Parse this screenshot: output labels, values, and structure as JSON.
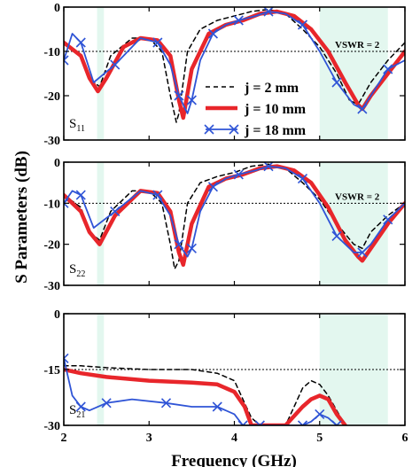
{
  "chart_data": {
    "type": "line",
    "xlabel": "Frequency (GHz)",
    "ylabel": "S Parameters (dB)",
    "xlim": [
      2,
      6
    ],
    "xticks": [
      "2",
      "3",
      "4",
      "5",
      "6"
    ],
    "shaded_bands": [
      [
        2.39,
        2.47
      ],
      [
        5.0,
        5.8
      ]
    ],
    "legend": {
      "placement": "middle-right of top panel",
      "entries": [
        {
          "label": "j = 2 mm",
          "color": "#000000",
          "style": "dashed"
        },
        {
          "label": "j = 10 mm",
          "color": "#e8262b",
          "style": "thick solid"
        },
        {
          "label": "j = 18 mm",
          "color": "#2f54d6",
          "style": "solid with x markers"
        }
      ]
    },
    "panels": [
      {
        "label_main": "S",
        "label_sub": "11",
        "ylim": [
          -30,
          0
        ],
        "yticks": [
          "0",
          "-10",
          "-20",
          "-30"
        ],
        "reference_line": {
          "y": -10,
          "label": "VSWR = 2"
        },
        "series": [
          {
            "name": "j = 2 mm",
            "x": [
              2.0,
              2.2,
              2.3,
              2.42,
              2.55,
              2.8,
              3.0,
              3.15,
              3.25,
              3.32,
              3.35,
              3.45,
              3.6,
              3.8,
              4.0,
              4.2,
              4.4,
              4.6,
              4.8,
              5.0,
              5.2,
              5.35,
              5.45,
              5.6,
              5.8,
              6.0
            ],
            "y": [
              -8,
              -11,
              -16,
              -18,
              -11,
              -7,
              -7,
              -10,
              -20,
              -26,
              -24,
              -10,
              -5,
              -3,
              -2,
              -1,
              -0.5,
              -1.5,
              -5,
              -9,
              -15,
              -21,
              -22,
              -17,
              -12,
              -8
            ]
          },
          {
            "name": "j = 10 mm",
            "x": [
              2.0,
              2.2,
              2.3,
              2.4,
              2.5,
              2.7,
              2.9,
              3.1,
              3.25,
              3.35,
              3.4,
              3.5,
              3.7,
              3.9,
              4.1,
              4.3,
              4.5,
              4.7,
              4.9,
              5.1,
              5.3,
              5.45,
              5.5,
              5.6,
              5.8,
              6.0
            ],
            "y": [
              -8,
              -11,
              -16,
              -19,
              -16,
              -9,
              -7,
              -7.5,
              -11,
              -21,
              -25,
              -14,
              -6,
              -4,
              -3,
              -1.5,
              -1,
              -2,
              -5,
              -10,
              -17,
              -22,
              -23,
              -20,
              -15,
              -10
            ]
          },
          {
            "name": "j = 18 mm",
            "x": [
              2.0,
              2.1,
              2.2,
              2.35,
              2.6,
              2.9,
              3.1,
              3.25,
              3.35,
              3.45,
              3.5,
              3.6,
              3.75,
              3.9,
              4.05,
              4.25,
              4.4,
              4.6,
              4.8,
              5.0,
              5.2,
              5.4,
              5.5,
              5.6,
              5.8,
              6.0
            ],
            "y": [
              -12,
              -6,
              -8,
              -17,
              -13,
              -7,
              -8,
              -13,
              -20,
              -24,
              -21,
              -12,
              -6,
              -4,
              -3,
              -2,
              -1,
              -1.5,
              -4,
              -10,
              -17,
              -22,
              -23,
              -20,
              -14,
              -12
            ]
          }
        ]
      },
      {
        "label_main": "S",
        "label_sub": "22",
        "ylim": [
          -30,
          0
        ],
        "yticks": [
          "0",
          "-10",
          "-20",
          "-30"
        ],
        "reference_line": {
          "y": -10,
          "label": "VSWR = 2"
        },
        "series": [
          {
            "name": "j = 2 mm",
            "x": [
              2.0,
              2.2,
              2.3,
              2.42,
              2.55,
              2.8,
              3.0,
              3.15,
              3.25,
              3.3,
              3.35,
              3.45,
              3.6,
              3.8,
              4.0,
              4.2,
              4.4,
              4.6,
              4.8,
              5.0,
              5.2,
              5.4,
              5.5,
              5.6,
              5.8,
              6.0
            ],
            "y": [
              -8,
              -11,
              -17,
              -19,
              -12,
              -7,
              -7,
              -10,
              -20,
              -26,
              -24,
              -10,
              -5,
              -3.5,
              -2.5,
              -1,
              -0.5,
              -1.5,
              -5,
              -9,
              -15,
              -20,
              -21,
              -17,
              -13,
              -10
            ]
          },
          {
            "name": "j = 10 mm",
            "x": [
              2.0,
              2.2,
              2.3,
              2.42,
              2.6,
              2.9,
              3.1,
              3.25,
              3.35,
              3.4,
              3.5,
              3.7,
              3.9,
              4.1,
              4.3,
              4.5,
              4.7,
              4.9,
              5.1,
              5.3,
              5.45,
              5.5,
              5.6,
              5.8,
              6.0
            ],
            "y": [
              -8,
              -12,
              -17,
              -20,
              -13,
              -7,
              -7.5,
              -12,
              -22,
              -25,
              -15,
              -6,
              -4,
              -3,
              -1.5,
              -1,
              -2,
              -5,
              -11,
              -19,
              -23,
              -24,
              -21,
              -15,
              -10
            ]
          },
          {
            "name": "j = 18 mm",
            "x": [
              2.0,
              2.1,
              2.2,
              2.35,
              2.6,
              2.9,
              3.1,
              3.25,
              3.35,
              3.45,
              3.5,
              3.6,
              3.75,
              3.9,
              4.05,
              4.25,
              4.4,
              4.6,
              4.8,
              5.0,
              5.2,
              5.4,
              5.5,
              5.6,
              5.8,
              6.0
            ],
            "y": [
              -10,
              -7,
              -8,
              -16,
              -12,
              -7,
              -8,
              -13,
              -20,
              -23,
              -21,
              -12,
              -6,
              -4,
              -3,
              -2,
              -1,
              -1.5,
              -4,
              -10,
              -18,
              -22,
              -22,
              -20,
              -14,
              -10
            ]
          }
        ]
      },
      {
        "label_main": "S",
        "label_sub": "21",
        "ylim": [
          -30,
          0
        ],
        "yticks": [
          "0",
          "-15",
          "-30"
        ],
        "reference_line": {
          "y": -15
        },
        "series": [
          {
            "name": "j = 2 mm",
            "x": [
              2.0,
              2.2,
              2.5,
              3.0,
              3.5,
              3.8,
              4.0,
              4.1,
              4.2,
              4.3,
              4.6,
              4.7,
              4.8,
              4.9,
              5.0,
              5.1,
              5.2,
              5.3
            ],
            "y": [
              -14,
              -14,
              -14.5,
              -15,
              -15,
              -16,
              -18,
              -23,
              -28,
              -30,
              -30,
              -25,
              -20,
              -18,
              -19,
              -22,
              -26,
              -30
            ]
          },
          {
            "name": "j = 10 mm",
            "x": [
              2.0,
              2.2,
              2.5,
              3.0,
              3.5,
              3.8,
              4.0,
              4.12,
              4.2,
              4.3,
              4.6,
              4.8,
              4.9,
              5.0,
              5.1,
              5.2,
              5.3
            ],
            "y": [
              -15,
              -16,
              -17,
              -18,
              -18.5,
              -19,
              -21,
              -25,
              -30,
              -30,
              -30,
              -25,
              -23,
              -22,
              -23,
              -27,
              -30
            ]
          },
          {
            "name": "j = 18 mm",
            "x": [
              2.0,
              2.1,
              2.2,
              2.3,
              2.5,
              2.8,
              3.2,
              3.5,
              3.8,
              4.0,
              4.1,
              4.2,
              4.3,
              4.6,
              4.8,
              4.9,
              5.0,
              5.1,
              5.2
            ],
            "y": [
              -12,
              -22,
              -25,
              -26,
              -24,
              -23,
              -24,
              -25,
              -25,
              -27,
              -30,
              -30,
              -30,
              -30,
              -30,
              -29,
              -27,
              -28,
              -30
            ]
          }
        ]
      }
    ]
  }
}
